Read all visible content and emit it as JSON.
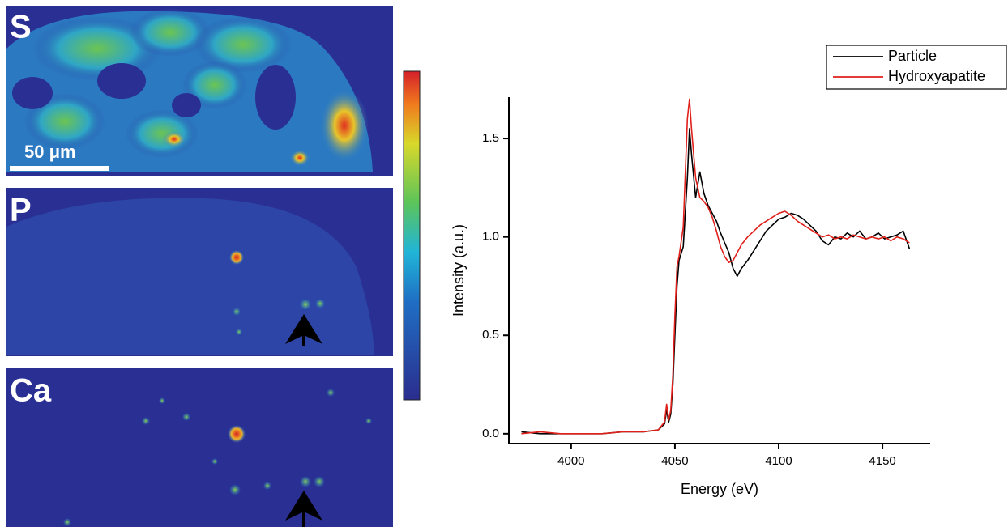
{
  "maps": {
    "panels": [
      {
        "label": "S"
      },
      {
        "label": "P"
      },
      {
        "label": "Ca"
      }
    ],
    "scale_bar": "50 μm"
  },
  "chart_data": {
    "type": "line",
    "xlabel": "Energy (eV)",
    "ylabel": "Intensity (a.u.)",
    "x": [
      3976,
      3985,
      3995,
      4005,
      4015,
      4025,
      4035,
      4042,
      4045,
      4046,
      4047,
      4048,
      4049,
      4050,
      4051,
      4052,
      4054,
      4056,
      4057,
      4058,
      4060,
      4062,
      4064,
      4066,
      4068,
      4070,
      4072,
      4074,
      4076,
      4078,
      4080,
      4082,
      4085,
      4088,
      4091,
      4094,
      4097,
      4100,
      4103,
      4106,
      4109,
      4112,
      4115,
      4118,
      4121,
      4124,
      4127,
      4130,
      4133,
      4136,
      4139,
      4142,
      4145,
      4148,
      4151,
      4154,
      4157,
      4160,
      4163
    ],
    "series": [
      {
        "name": "Particle",
        "color": "#000000",
        "values": [
          0.01,
          0.0,
          0.0,
          0.0,
          0.0,
          0.01,
          0.01,
          0.02,
          0.05,
          0.12,
          0.06,
          0.1,
          0.25,
          0.5,
          0.75,
          0.88,
          0.95,
          1.3,
          1.55,
          1.42,
          1.2,
          1.33,
          1.22,
          1.16,
          1.12,
          1.08,
          1.02,
          0.97,
          0.92,
          0.84,
          0.8,
          0.84,
          0.88,
          0.93,
          0.98,
          1.03,
          1.06,
          1.09,
          1.1,
          1.12,
          1.11,
          1.09,
          1.06,
          1.03,
          0.98,
          0.96,
          1.0,
          0.99,
          1.02,
          1.0,
          1.03,
          0.99,
          1.0,
          1.02,
          0.99,
          1.0,
          1.01,
          1.03,
          0.94
        ]
      },
      {
        "name": "Hydroxyapatite",
        "color": "#e0201b",
        "values": [
          0.0,
          0.01,
          0.0,
          0.0,
          0.0,
          0.01,
          0.01,
          0.02,
          0.06,
          0.15,
          0.07,
          0.12,
          0.3,
          0.6,
          0.85,
          0.9,
          1.05,
          1.6,
          1.7,
          1.55,
          1.3,
          1.2,
          1.18,
          1.15,
          1.1,
          1.03,
          0.95,
          0.9,
          0.87,
          0.88,
          0.92,
          0.96,
          1.0,
          1.03,
          1.06,
          1.08,
          1.1,
          1.12,
          1.13,
          1.11,
          1.08,
          1.06,
          1.04,
          1.02,
          1.0,
          1.01,
          0.99,
          1.0,
          0.99,
          1.01,
          1.0,
          0.99,
          1.0,
          0.99,
          1.0,
          0.98,
          1.0,
          0.99,
          0.97
        ]
      }
    ],
    "xlim": [
      3970,
      4173
    ],
    "xticks": [
      4000,
      4050,
      4100,
      4150
    ],
    "ylim": [
      -0.05,
      1.71
    ],
    "yticks": [
      {
        "value": 0,
        "label": "0.0"
      },
      0.5,
      {
        "value": 1,
        "label": "1.0"
      },
      1.5
    ],
    "legend": "upper-right",
    "grid": false
  }
}
